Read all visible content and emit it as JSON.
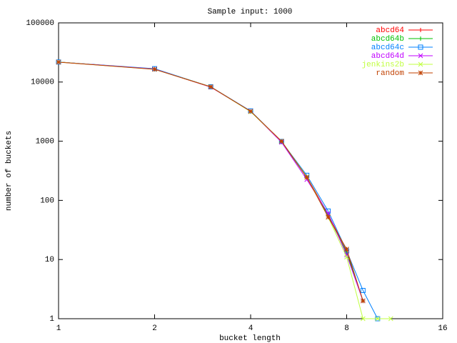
{
  "chart_data": {
    "type": "line",
    "title": "Sample input: 1000",
    "x_label": "bucket length",
    "y_label": "number of buckets",
    "x": [
      1,
      2,
      3,
      4,
      5,
      6,
      7,
      8,
      9,
      10,
      11
    ],
    "series": [
      {
        "name": "abcd64",
        "color": "#ff0000",
        "values": [
          21800,
          16500,
          8200,
          3200,
          970,
          250,
          58,
          14,
          2,
          null,
          null
        ]
      },
      {
        "name": "abcd64b",
        "color": "#00c000",
        "values": [
          21800,
          16600,
          8300,
          3200,
          980,
          245,
          55,
          13,
          2,
          null,
          null
        ]
      },
      {
        "name": "abcd64c",
        "color": "#0080ff",
        "values": [
          21800,
          16800,
          8300,
          3250,
          990,
          265,
          66,
          14,
          3,
          1,
          null
        ]
      },
      {
        "name": "abcd64d",
        "color": "#c000ff",
        "values": [
          21800,
          16600,
          8200,
          3200,
          960,
          225,
          60,
          12,
          2,
          null,
          null
        ]
      },
      {
        "name": "jenkins2b",
        "color": "#c0ff40",
        "values": [
          21800,
          16400,
          8300,
          3150,
          1000,
          250,
          52,
          11,
          1,
          1,
          1
        ]
      },
      {
        "name": "random",
        "color": "#c04000",
        "values": [
          21700,
          16400,
          8300,
          3200,
          1000,
          245,
          52,
          15,
          2,
          null,
          null
        ]
      }
    ],
    "xlim": [
      1,
      16
    ],
    "xticks": [
      1,
      2,
      4,
      8,
      16
    ],
    "ylim": [
      1,
      100000
    ],
    "yticks": [
      1,
      10,
      100,
      1000,
      10000,
      100000
    ],
    "log_x": true,
    "log_y": true,
    "legend": "top-right"
  }
}
